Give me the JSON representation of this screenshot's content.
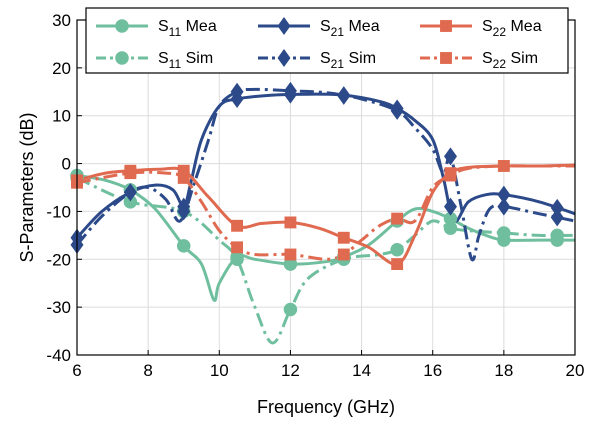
{
  "chart_data": {
    "type": "line",
    "xlabel": "Frequency (GHz)",
    "ylabel": "S-Parameters (dB)",
    "xlim": [
      6,
      20
    ],
    "ylim": [
      -40,
      30
    ],
    "xticks": [
      6,
      8,
      10,
      12,
      14,
      16,
      18,
      20
    ],
    "yticks": [
      30,
      20,
      10,
      0,
      -10,
      -20,
      -30,
      -40
    ],
    "grid": true,
    "legend": {
      "placement": "top",
      "entries": [
        {
          "base": "S",
          "sub": "11",
          "suffix": "Mea"
        },
        {
          "base": "S",
          "sub": "21",
          "suffix": "Mea"
        },
        {
          "base": "S",
          "sub": "22",
          "suffix": "Mea"
        },
        {
          "base": "S",
          "sub": "11",
          "suffix": "Sim"
        },
        {
          "base": "S",
          "sub": "21",
          "suffix": "Sim"
        },
        {
          "base": "S",
          "sub": "22",
          "suffix": "Sim"
        }
      ]
    },
    "series": [
      {
        "name": "S11 Mea",
        "color": "#6fbf9f",
        "dash": "solid",
        "marker": "circle",
        "x": [
          6,
          6.8,
          7.5,
          8.2,
          9.0,
          9.5,
          9.85,
          10.0,
          10.5,
          11.0,
          12.0,
          13.0,
          13.5,
          14.2,
          15.0,
          15.5,
          16.0,
          16.5,
          17.0,
          17.5,
          18.0,
          19.0,
          20.0
        ],
        "y": [
          -2.5,
          -3.5,
          -5.5,
          -9.5,
          -17.2,
          -21.0,
          -28.5,
          -25.0,
          -19.5,
          -20.0,
          -21.0,
          -20.5,
          -19.5,
          -17.0,
          -12.0,
          -9.5,
          -10.0,
          -11.5,
          -13.5,
          -15.0,
          -16.0,
          -16.0,
          -16.0
        ],
        "markers_x": [
          6,
          7.5,
          9.0,
          10.5,
          12.0,
          13.5,
          15.0,
          16.5,
          18.0,
          19.5
        ]
      },
      {
        "name": "S11 Sim",
        "color": "#6fbf9f",
        "dash": "dashdot",
        "marker": "circle",
        "x": [
          6,
          7.5,
          9.0,
          10.0,
          10.5,
          11.0,
          11.5,
          12.0,
          12.5,
          13.5,
          14.5,
          15.0,
          15.5,
          16.0,
          16.5,
          17.0,
          18.0,
          19.0,
          20.0
        ],
        "y": [
          -3.0,
          -8.0,
          -10.0,
          -16.0,
          -20.0,
          -30.0,
          -37.5,
          -30.5,
          -24.0,
          -20.0,
          -19.0,
          -18.0,
          -15.0,
          -12.0,
          -13.5,
          -14.0,
          -14.5,
          -15.0,
          -15.0
        ],
        "markers_x": [
          6,
          7.5,
          9.0,
          10.5,
          12.0,
          13.5,
          15.0,
          16.5,
          18.0,
          19.5
        ]
      },
      {
        "name": "S21 Mea",
        "color": "#2c4a8a",
        "dash": "solid",
        "marker": "diamond",
        "x": [
          6,
          6.7,
          7.5,
          8.2,
          8.7,
          9.0,
          9.2,
          9.5,
          10.0,
          10.5,
          11.5,
          12.5,
          13.5,
          14.5,
          15.0,
          15.5,
          16.0,
          16.3,
          16.6,
          17.0,
          17.5,
          18.0,
          19.0,
          20.0
        ],
        "y": [
          -15.5,
          -10.0,
          -6.0,
          -4.5,
          -5.5,
          -9.0,
          -4.0,
          5.0,
          12.0,
          13.5,
          14.3,
          14.5,
          14.3,
          13.0,
          11.5,
          9.0,
          5.0,
          -3.0,
          -12.0,
          -8.0,
          -6.5,
          -6.5,
          -8.0,
          -10.5
        ],
        "markers_x": [
          6,
          7.5,
          9.0,
          10.5,
          12.0,
          13.5,
          15.0,
          16.5,
          18.0,
          19.5
        ]
      },
      {
        "name": "S21 Sim",
        "color": "#2c4a8a",
        "dash": "dashdot",
        "marker": "diamond",
        "x": [
          6,
          6.7,
          7.5,
          8.0,
          8.5,
          8.9,
          9.3,
          9.7,
          10.0,
          10.5,
          11.0,
          12.0,
          13.0,
          14.0,
          15.0,
          15.5,
          16.0,
          16.3,
          16.5,
          16.8,
          17.1,
          17.3,
          17.6,
          18.0,
          19.0,
          20.0
        ],
        "y": [
          -17.0,
          -11.0,
          -6.0,
          -5.0,
          -7.5,
          -12.0,
          -4.0,
          5.0,
          12.0,
          15.0,
          15.5,
          15.2,
          14.8,
          13.5,
          11.0,
          7.5,
          3.0,
          -2.0,
          1.5,
          -9.0,
          -20.0,
          -15.0,
          -9.5,
          -9.0,
          -10.5,
          -12.0
        ],
        "markers_x": [
          6,
          7.5,
          9.0,
          10.5,
          12.0,
          13.5,
          15.0,
          16.5,
          18.0,
          19.5
        ]
      },
      {
        "name": "S22 Mea",
        "color": "#e06a50",
        "dash": "solid",
        "marker": "square",
        "x": [
          6,
          6.8,
          7.5,
          8.3,
          9.0,
          9.7,
          10.5,
          11.2,
          12.0,
          12.8,
          13.5,
          14.2,
          15.0,
          15.5,
          16.0,
          16.5,
          17.0,
          18.0,
          19.0,
          20.0
        ],
        "y": [
          -3.5,
          -2.0,
          -1.5,
          -1.2,
          -1.5,
          -7.0,
          -13.0,
          -12.5,
          -12.3,
          -13.5,
          -15.5,
          -17.5,
          -21.0,
          -15.0,
          -6.0,
          -2.0,
          -0.8,
          -0.5,
          -0.5,
          -0.3
        ],
        "markers_x": [
          6,
          7.5,
          9.0,
          10.5,
          12.0,
          13.5,
          15.0,
          16.5,
          18.0
        ]
      },
      {
        "name": "S22 Sim",
        "color": "#e06a50",
        "dash": "dashdot",
        "marker": "square",
        "x": [
          6,
          7.5,
          8.5,
          9.0,
          9.5,
          10.0,
          10.5,
          11.0,
          12.0,
          13.0,
          13.5,
          14.0,
          14.5,
          15.0,
          15.5,
          16.0,
          16.5,
          17.0,
          18.0,
          19.0,
          20.0
        ],
        "y": [
          -4.0,
          -2.0,
          -2.0,
          -3.0,
          -8.0,
          -14.0,
          -17.5,
          -19.0,
          -19.0,
          -20.0,
          -19.0,
          -16.0,
          -13.0,
          -11.5,
          -12.0,
          -5.0,
          -2.5,
          -1.0,
          -0.5,
          -0.5,
          -0.5
        ],
        "markers_x": [
          6,
          7.5,
          9.0,
          10.5,
          12.0,
          13.5,
          15.0,
          16.5
        ]
      }
    ]
  }
}
